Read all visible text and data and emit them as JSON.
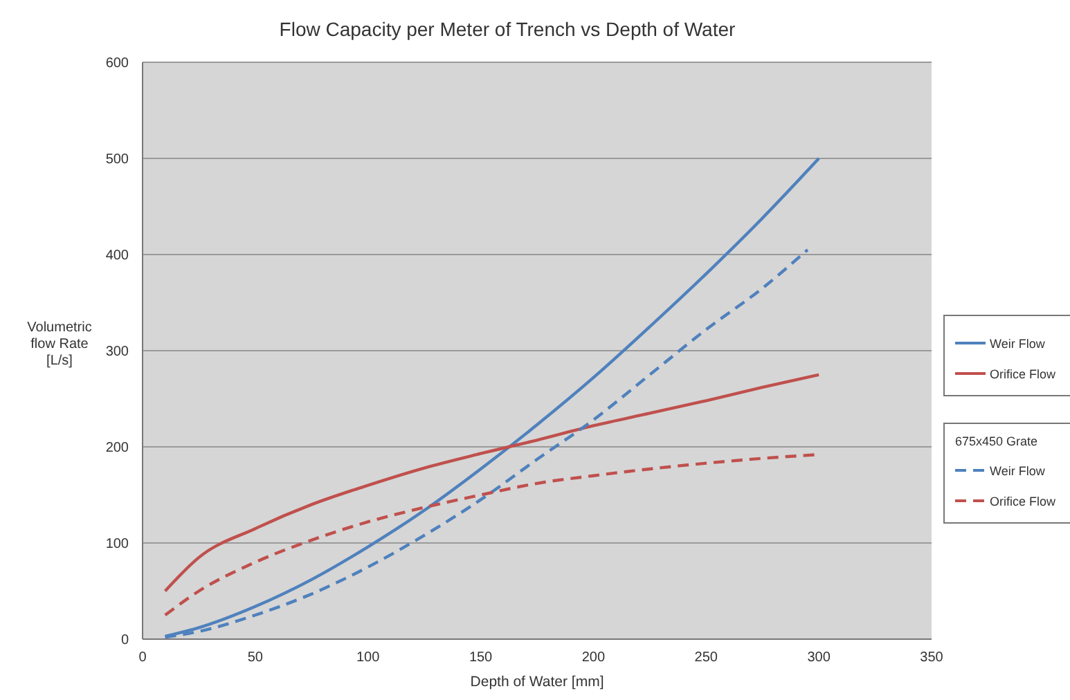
{
  "chart_data": {
    "type": "line",
    "title": "Flow Capacity per Meter of Trench vs Depth of Water",
    "xlabel": "Depth of Water [mm]",
    "ylabel": "Volumetric\nflow Rate\n[L/s]",
    "legend_title": "675x450 Grate",
    "xlim": [
      0,
      350
    ],
    "xticks": [
      0,
      50,
      100,
      150,
      200,
      250,
      300,
      350
    ],
    "ylim": [
      0,
      600
    ],
    "yticks": [
      0,
      100,
      200,
      300,
      400,
      500,
      600
    ],
    "grid": "y",
    "legend": "right",
    "x": [
      10,
      25,
      50,
      75,
      100,
      125,
      150,
      175,
      200,
      225,
      250,
      275,
      300
    ],
    "series": [
      {
        "name": "Weir Flow",
        "color": "#4f81bd",
        "line_style": "solid",
        "values": [
          3,
          12,
          34,
          62,
          96,
          134,
          177,
          223,
          272,
          325,
          380,
          438,
          500
        ]
      },
      {
        "name": "Orifice Flow",
        "color": "#c0504d",
        "line_style": "solid",
        "values": [
          50,
          85,
          115,
          140,
          160,
          178,
          193,
          207,
          222,
          235,
          248,
          262,
          275
        ]
      },
      {
        "name": "Weir Flow",
        "color": "#4f81bd",
        "line_style": "dashed",
        "x": [
          10,
          25,
          50,
          75,
          100,
          125,
          150,
          175,
          200,
          225,
          250,
          275,
          295
        ],
        "values": [
          2,
          8,
          25,
          47,
          75,
          108,
          145,
          187,
          228,
          275,
          322,
          365,
          405
        ]
      },
      {
        "name": "Orifice Flow",
        "color": "#c0504d",
        "line_style": "dashed",
        "values": [
          25,
          50,
          80,
          103,
          122,
          137,
          150,
          162,
          170,
          177,
          183,
          188,
          192
        ]
      }
    ]
  }
}
